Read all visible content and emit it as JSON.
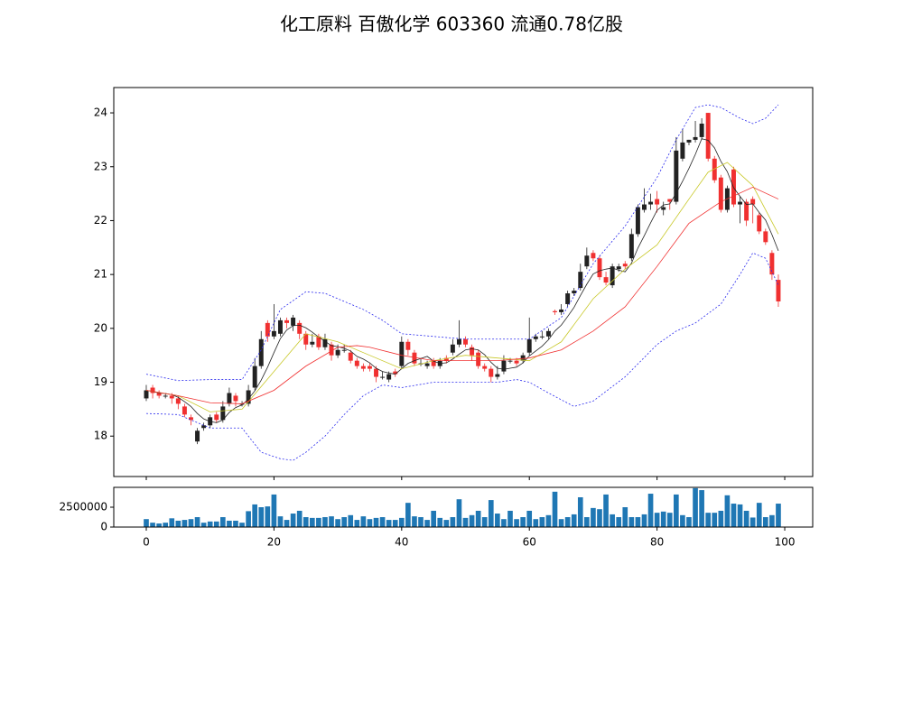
{
  "chart_data": [
    {
      "type": "candlestick",
      "title": "化工原料 百傲化学 603360 流通0.78亿股",
      "x": [
        0,
        1,
        2,
        3,
        4,
        5,
        6,
        7,
        8,
        9,
        10,
        11,
        12,
        13,
        14,
        15,
        16,
        17,
        18,
        19,
        20,
        21,
        22,
        23,
        24,
        25,
        26,
        27,
        28,
        29,
        30,
        31,
        32,
        33,
        34,
        35,
        36,
        37,
        38,
        39,
        40,
        41,
        42,
        43,
        44,
        45,
        46,
        47,
        48,
        49,
        50,
        51,
        52,
        53,
        54,
        55,
        56,
        57,
        58,
        59,
        60,
        61,
        62,
        63,
        64,
        65,
        66,
        67,
        68,
        69,
        70,
        71,
        72,
        73,
        74,
        75,
        76,
        77,
        78,
        79,
        80,
        81,
        82,
        83,
        84,
        85,
        86,
        87,
        88,
        89,
        90,
        91,
        92,
        93,
        94,
        95,
        96,
        97,
        98,
        99
      ],
      "open": [
        18.7,
        18.9,
        18.8,
        18.75,
        18.75,
        18.7,
        18.55,
        18.35,
        17.9,
        18.15,
        18.2,
        18.4,
        18.3,
        18.6,
        18.75,
        18.6,
        18.6,
        18.9,
        19.3,
        20.1,
        19.85,
        19.9,
        20.15,
        20.05,
        20.1,
        19.9,
        19.7,
        19.85,
        19.65,
        19.7,
        19.5,
        19.6,
        19.55,
        19.4,
        19.3,
        19.3,
        19.25,
        19.1,
        19.05,
        19.2,
        19.3,
        19.75,
        19.55,
        19.35,
        19.3,
        19.4,
        19.3,
        19.45,
        19.55,
        19.7,
        19.8,
        19.65,
        19.55,
        19.3,
        19.25,
        19.1,
        19.2,
        19.4,
        19.4,
        19.4,
        19.55,
        19.8,
        19.85,
        19.85,
        20.32,
        20.3,
        20.45,
        20.65,
        20.75,
        21.15,
        21.4,
        21.3,
        20.95,
        20.8,
        21.1,
        21.2,
        21.3,
        21.75,
        22.2,
        22.3,
        22.4,
        22.2,
        22.4,
        22.35,
        23.15,
        23.45,
        23.5,
        23.55,
        24.0,
        23.15,
        22.8,
        22.2,
        22.95,
        22.3,
        22.35,
        22.4,
        22.1,
        21.8,
        21.4,
        20.9
      ],
      "high": [
        18.95,
        18.95,
        18.85,
        18.8,
        18.8,
        18.75,
        18.6,
        18.4,
        18.15,
        18.25,
        18.4,
        18.45,
        18.65,
        18.9,
        18.8,
        18.65,
        18.95,
        19.45,
        19.95,
        20.15,
        20.45,
        20.2,
        20.2,
        20.25,
        20.15,
        19.95,
        19.9,
        19.9,
        19.9,
        19.75,
        19.7,
        19.7,
        19.6,
        19.45,
        19.35,
        19.35,
        19.3,
        19.2,
        19.2,
        19.25,
        19.85,
        19.8,
        19.6,
        19.45,
        19.4,
        19.45,
        19.45,
        19.5,
        19.8,
        20.15,
        19.85,
        19.7,
        19.6,
        19.35,
        19.3,
        19.3,
        19.5,
        19.45,
        19.45,
        19.55,
        20.2,
        19.9,
        19.95,
        20.0,
        20.35,
        20.45,
        20.7,
        20.75,
        21.2,
        21.5,
        21.45,
        21.35,
        21.05,
        21.2,
        21.2,
        21.25,
        21.85,
        22.3,
        22.6,
        22.5,
        22.55,
        22.35,
        22.4,
        23.55,
        23.7,
        23.5,
        23.85,
        23.9,
        24.0,
        23.2,
        22.85,
        22.65,
        23.0,
        22.45,
        22.4,
        22.45,
        22.15,
        21.85,
        21.45,
        21.0
      ],
      "low": [
        18.65,
        18.7,
        18.7,
        18.7,
        18.6,
        18.5,
        18.35,
        18.2,
        17.85,
        18.1,
        18.15,
        18.25,
        18.25,
        18.55,
        18.55,
        18.55,
        18.55,
        18.85,
        19.25,
        19.75,
        19.8,
        19.85,
        20.0,
        19.95,
        19.8,
        19.6,
        19.65,
        19.6,
        19.6,
        19.4,
        19.45,
        19.55,
        19.35,
        19.25,
        19.2,
        19.2,
        19.0,
        19.05,
        19.0,
        19.1,
        19.25,
        19.5,
        19.3,
        19.3,
        19.25,
        19.25,
        19.25,
        19.35,
        19.5,
        19.65,
        19.65,
        19.4,
        19.25,
        19.2,
        19.0,
        19.05,
        19.15,
        19.35,
        19.3,
        19.35,
        19.5,
        19.75,
        19.8,
        19.8,
        20.25,
        20.25,
        20.4,
        20.6,
        20.7,
        21.1,
        21.25,
        20.9,
        20.8,
        20.75,
        21.05,
        21.1,
        21.25,
        21.7,
        22.15,
        22.2,
        22.15,
        22.1,
        22.2,
        22.3,
        23.1,
        23.4,
        23.45,
        23.5,
        23.1,
        22.7,
        22.15,
        22.15,
        22.25,
        21.95,
        21.9,
        21.95,
        21.75,
        21.55,
        20.9,
        20.4
      ],
      "close": [
        18.85,
        18.8,
        18.75,
        18.75,
        18.7,
        18.6,
        18.4,
        18.3,
        18.1,
        18.2,
        18.35,
        18.3,
        18.55,
        18.8,
        18.65,
        18.6,
        18.85,
        19.3,
        19.8,
        19.85,
        19.95,
        20.15,
        20.1,
        20.2,
        19.9,
        19.7,
        19.75,
        19.65,
        19.8,
        19.5,
        19.6,
        19.6,
        19.4,
        19.3,
        19.25,
        19.25,
        19.1,
        19.1,
        19.15,
        19.15,
        19.75,
        19.6,
        19.35,
        19.35,
        19.35,
        19.3,
        19.4,
        19.4,
        19.7,
        19.8,
        19.7,
        19.5,
        19.3,
        19.25,
        19.1,
        19.15,
        19.4,
        19.4,
        19.35,
        19.5,
        19.8,
        19.85,
        19.85,
        19.95,
        20.3,
        20.35,
        20.65,
        20.7,
        21.05,
        21.35,
        21.3,
        20.95,
        20.85,
        21.15,
        21.15,
        21.15,
        21.75,
        22.25,
        22.3,
        22.35,
        22.3,
        22.25,
        22.35,
        23.3,
        23.45,
        23.5,
        23.55,
        23.8,
        23.15,
        22.75,
        22.2,
        22.6,
        22.3,
        22.35,
        22.0,
        22.3,
        21.8,
        21.6,
        21.0,
        20.5
      ],
      "up_color": "#222222",
      "down_color": "#f03030",
      "series": [
        {
          "color": "#222222",
          "values": [
            18.85,
            18.83,
            18.8,
            18.79,
            18.77,
            18.72,
            18.64,
            18.55,
            18.42,
            18.32,
            18.27,
            18.25,
            18.3,
            18.44,
            18.53,
            18.58,
            18.69,
            18.84,
            19.04,
            19.28,
            19.55,
            19.81,
            19.97,
            20.05,
            20.06,
            20.01,
            19.93,
            19.84,
            19.76,
            19.68,
            19.66,
            19.63,
            19.58,
            19.48,
            19.43,
            19.36,
            19.26,
            19.2,
            19.17,
            19.15,
            19.25,
            19.35,
            19.4,
            19.44,
            19.48,
            19.39,
            19.35,
            19.36,
            19.43,
            19.52,
            19.6,
            19.62,
            19.6,
            19.51,
            19.37,
            19.26,
            19.24,
            19.26,
            19.28,
            19.36,
            19.49,
            19.58,
            19.67,
            19.79,
            19.95,
            20.06,
            20.22,
            20.39,
            20.61,
            20.82,
            21.01,
            21.07,
            21.1,
            21.12,
            21.08,
            21.05,
            21.21,
            21.49,
            21.72,
            21.96,
            22.19,
            22.29,
            22.31,
            22.51,
            22.73,
            22.97,
            23.23,
            23.52,
            23.49,
            23.35,
            23.1,
            22.91,
            22.61,
            22.45,
            22.3,
            22.31,
            22.15,
            22.01,
            21.74,
            21.44
          ]
        },
        {
          "color": "#c8c828",
          "x": [
            0,
            5,
            10,
            15,
            20,
            25,
            30,
            35,
            40,
            45,
            50,
            55,
            60,
            65,
            70,
            75,
            80,
            85,
            88,
            91,
            95,
            99
          ],
          "values": [
            18.85,
            18.75,
            18.45,
            18.5,
            19.2,
            19.9,
            19.75,
            19.5,
            19.25,
            19.4,
            19.5,
            19.45,
            19.4,
            19.75,
            20.55,
            21.1,
            21.55,
            22.4,
            22.9,
            23.08,
            22.65,
            21.75
          ]
        },
        {
          "color": "#f03030",
          "x": [
            0,
            5,
            10,
            15,
            20,
            25,
            30,
            33,
            35,
            40,
            45,
            50,
            55,
            60,
            65,
            70,
            75,
            80,
            85,
            90,
            95,
            99
          ],
          "values": [
            18.85,
            18.75,
            18.62,
            18.6,
            18.85,
            19.3,
            19.65,
            19.68,
            19.65,
            19.5,
            19.4,
            19.4,
            19.4,
            19.45,
            19.6,
            19.95,
            20.4,
            21.15,
            21.95,
            22.35,
            22.62,
            22.4
          ]
        },
        {
          "color": "#2a2aee",
          "dashed": true,
          "x": [
            0,
            5,
            10,
            15,
            18,
            21,
            25,
            28,
            31,
            34,
            37,
            40,
            45,
            50,
            55,
            60,
            65,
            70,
            75,
            80,
            83,
            86,
            88,
            90,
            93,
            95,
            97,
            99
          ],
          "values": [
            19.15,
            19.03,
            19.05,
            19.05,
            19.6,
            20.35,
            20.68,
            20.65,
            20.5,
            20.35,
            20.15,
            19.9,
            19.85,
            19.8,
            19.8,
            19.8,
            20.2,
            21.2,
            21.9,
            22.8,
            23.5,
            24.1,
            24.15,
            24.1,
            23.9,
            23.8,
            23.9,
            24.15
          ]
        },
        {
          "color": "#2a2aee",
          "dashed": true,
          "x": [
            0,
            5,
            10,
            15,
            18,
            21,
            23,
            25,
            28,
            31,
            34,
            37,
            40,
            45,
            50,
            55,
            58,
            60,
            63,
            67,
            70,
            75,
            80,
            83,
            86,
            90,
            93,
            95,
            97,
            99
          ],
          "values": [
            18.42,
            18.4,
            18.15,
            18.15,
            17.7,
            17.58,
            17.55,
            17.7,
            18.0,
            18.4,
            18.75,
            18.95,
            18.9,
            19.0,
            19.0,
            19.0,
            19.05,
            19.0,
            18.8,
            18.55,
            18.65,
            19.1,
            19.7,
            19.95,
            20.1,
            20.45,
            21.0,
            21.4,
            21.3,
            20.8
          ]
        }
      ],
      "xlim": [
        -5.09,
        104.38
      ],
      "ylim": [
        17.25,
        24.47
      ],
      "yticks": [
        18,
        19,
        20,
        21,
        22,
        23,
        24
      ]
    },
    {
      "type": "bar",
      "color": "#1f77b4",
      "values": [
        1000000,
        550000,
        450000,
        550000,
        1100000,
        800000,
        900000,
        1000000,
        1250000,
        550000,
        700000,
        700000,
        1250000,
        800000,
        800000,
        550000,
        2000000,
        2850000,
        2500000,
        2600000,
        4100000,
        1350000,
        900000,
        1700000,
        2050000,
        1250000,
        1150000,
        1150000,
        1250000,
        1350000,
        1000000,
        1250000,
        1500000,
        900000,
        1350000,
        1000000,
        1150000,
        1250000,
        900000,
        900000,
        1150000,
        3050000,
        1350000,
        1250000,
        900000,
        2050000,
        1150000,
        900000,
        1250000,
        3500000,
        1150000,
        1500000,
        2050000,
        1250000,
        3400000,
        1700000,
        1000000,
        2050000,
        1000000,
        1250000,
        2050000,
        1000000,
        1250000,
        1500000,
        4450000,
        1000000,
        1250000,
        1600000,
        3750000,
        1250000,
        2400000,
        2250000,
        4100000,
        1600000,
        1250000,
        2500000,
        1250000,
        1250000,
        1600000,
        4200000,
        1800000,
        1950000,
        1800000,
        4100000,
        1500000,
        1250000,
        4900000,
        4650000,
        1800000,
        1800000,
        2050000,
        4000000,
        2950000,
        2850000,
        2050000,
        1200000,
        3050000,
        1250000,
        1500000,
        2950000
      ],
      "xlim": [
        -5.09,
        104.38
      ],
      "ylim": [
        0,
        5000000
      ],
      "yticks": [
        0,
        2500000
      ],
      "xticks": [
        0,
        20,
        40,
        60,
        80,
        100
      ]
    }
  ]
}
